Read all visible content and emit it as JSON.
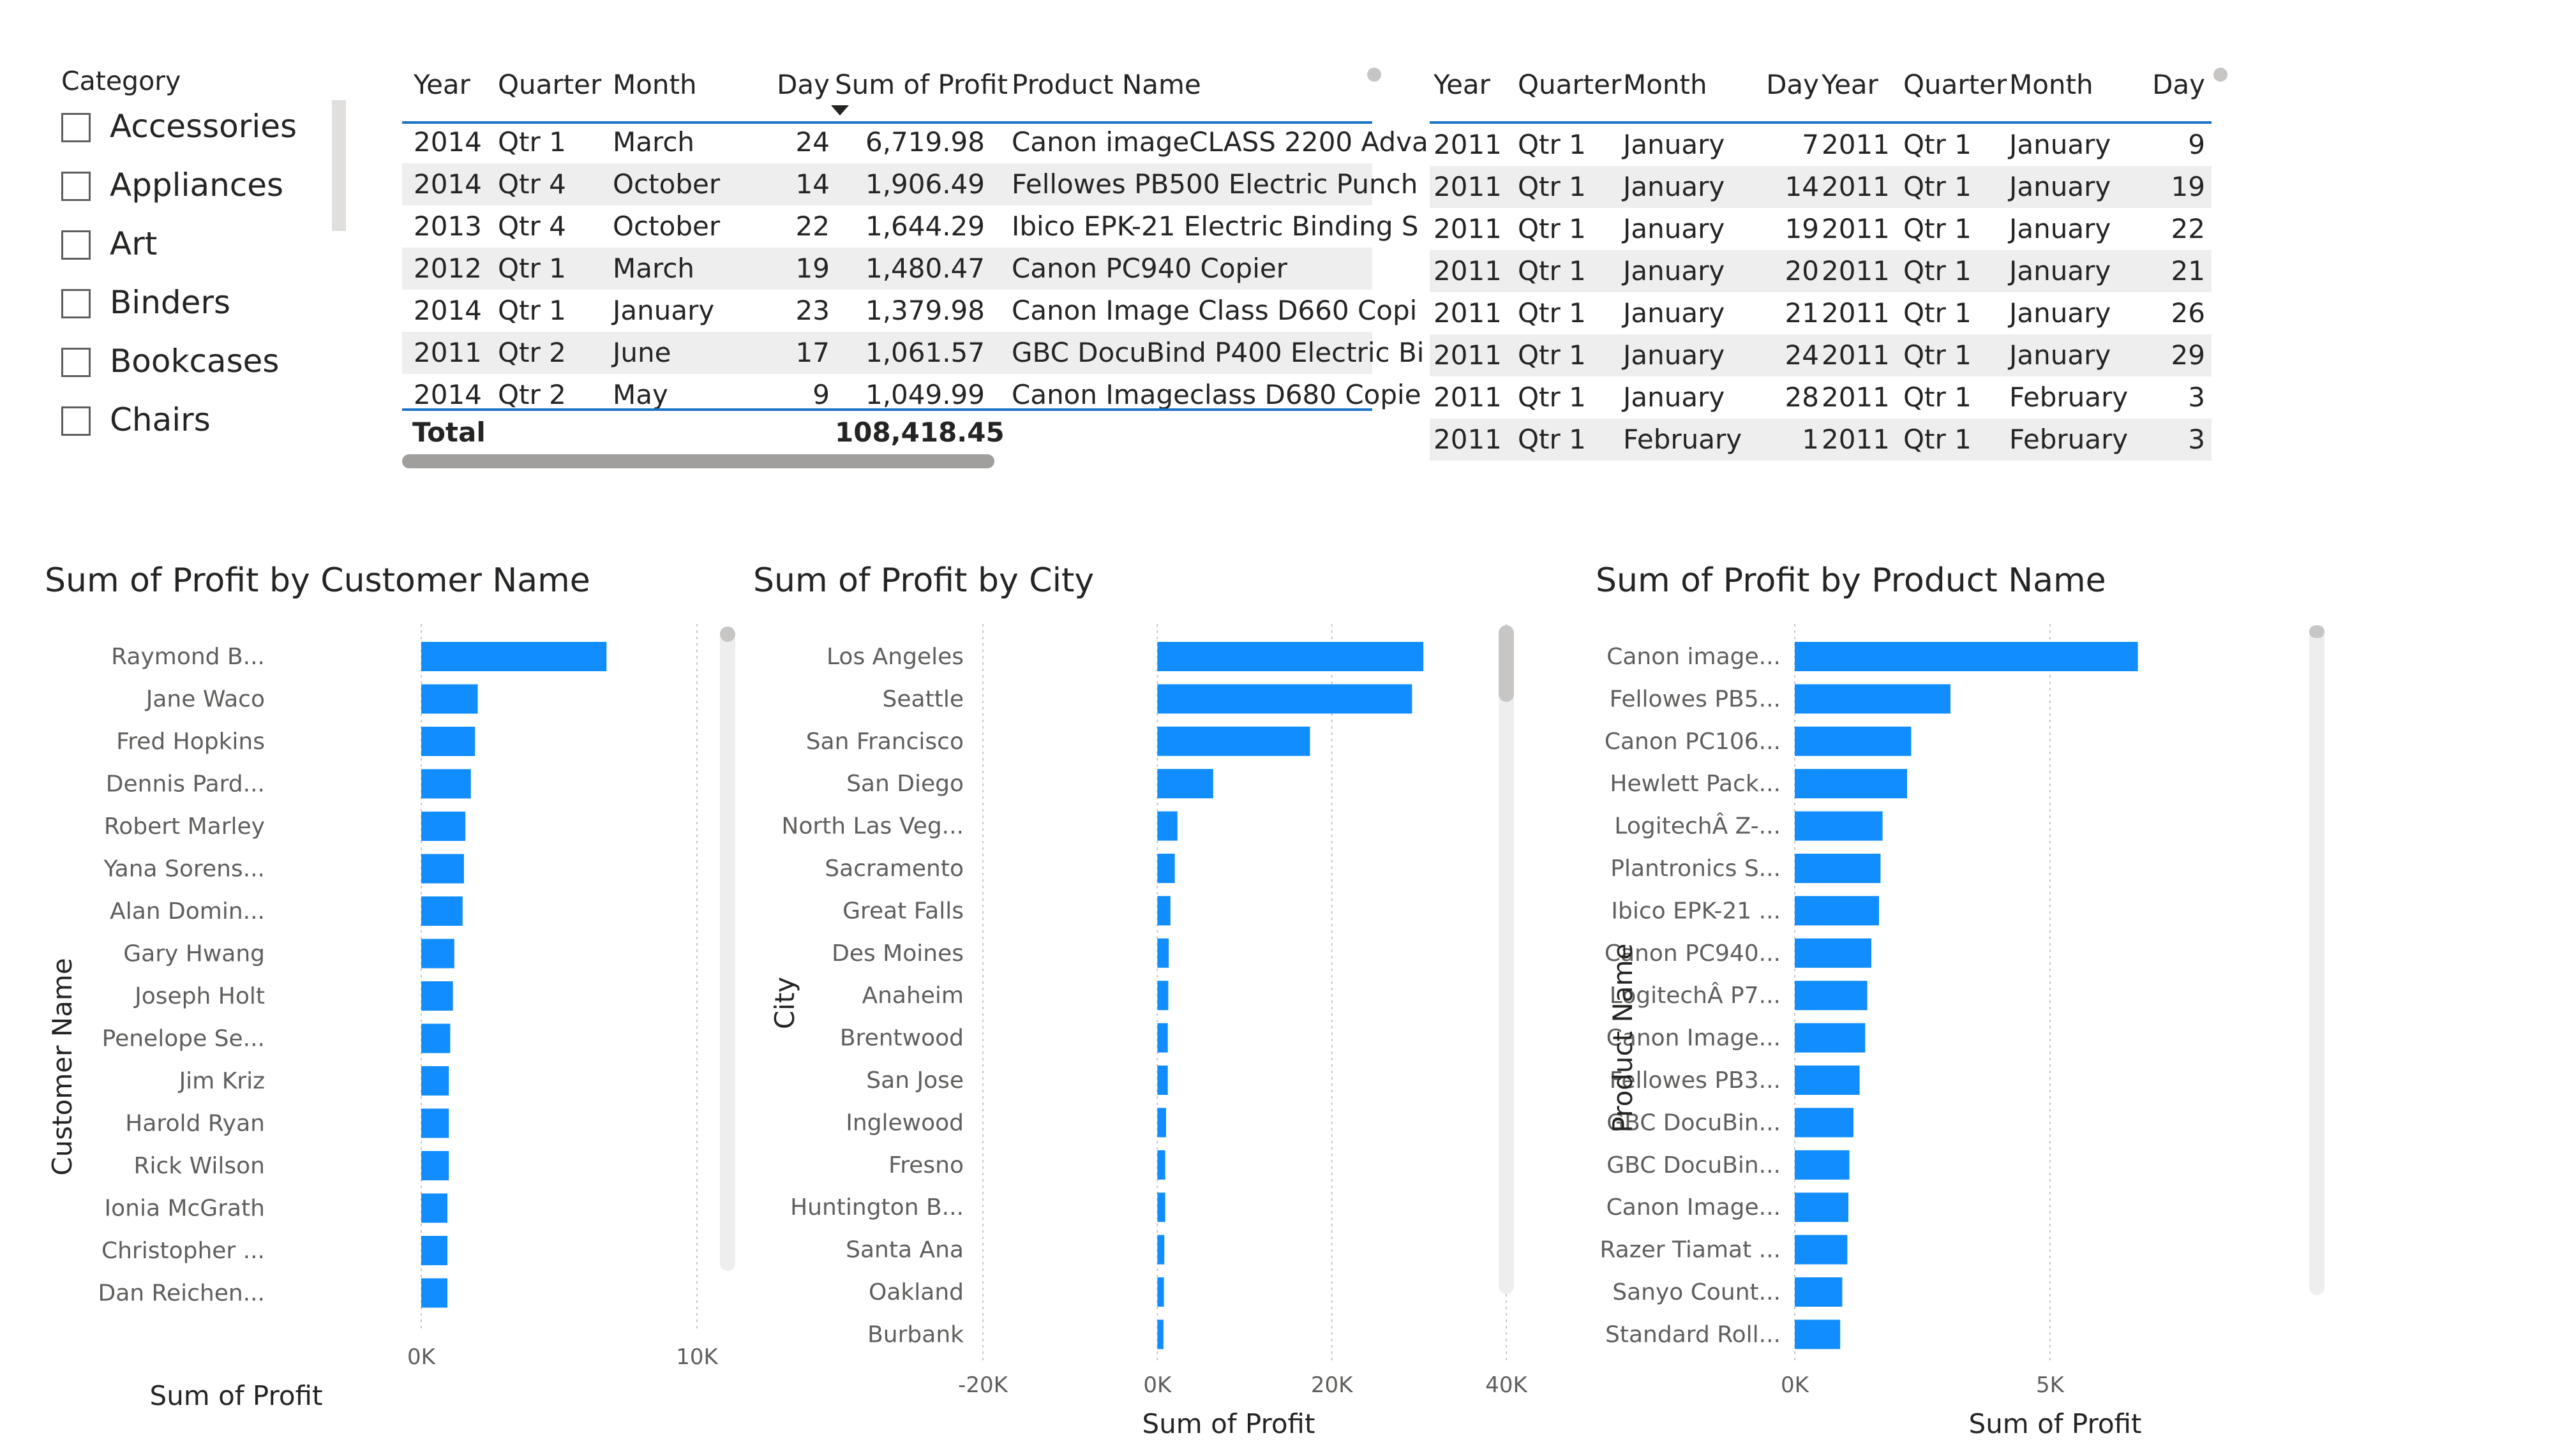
{
  "slicer": {
    "title": "Category",
    "options": [
      "Accessories",
      "Appliances",
      "Art",
      "Binders",
      "Bookcases",
      "Chairs"
    ]
  },
  "table1": {
    "headers": [
      "Year",
      "Quarter",
      "Month",
      "Day",
      "Sum of Profit",
      "Product Name"
    ],
    "rows": [
      [
        "2014",
        "Qtr 1",
        "March",
        "24",
        "6,719.98",
        "Canon imageCLASS 2200 Adva"
      ],
      [
        "2014",
        "Qtr 4",
        "October",
        "14",
        "1,906.49",
        "Fellowes PB500 Electric Punch"
      ],
      [
        "2013",
        "Qtr 4",
        "October",
        "22",
        "1,644.29",
        "Ibico EPK-21 Electric Binding S"
      ],
      [
        "2012",
        "Qtr 1",
        "March",
        "19",
        "1,480.47",
        "Canon PC940 Copier"
      ],
      [
        "2014",
        "Qtr 1",
        "January",
        "23",
        "1,379.98",
        "Canon Image Class D660 Copi"
      ],
      [
        "2011",
        "Qtr 2",
        "June",
        "17",
        "1,061.57",
        "GBC DocuBind P400 Electric Bi"
      ],
      [
        "2014",
        "Qtr 2",
        "May",
        "9",
        "1,049.99",
        "Canon Imageclass D680 Copie"
      ]
    ],
    "total_label": "Total",
    "total_value": "108,418.45"
  },
  "table2": {
    "headers": [
      "Year",
      "Quarter",
      "Month",
      "Day",
      "Year",
      "Quarter",
      "Month",
      "Day"
    ],
    "rows": [
      [
        "2011",
        "Qtr 1",
        "January",
        "7",
        "2011",
        "Qtr 1",
        "January",
        "9"
      ],
      [
        "2011",
        "Qtr 1",
        "January",
        "14",
        "2011",
        "Qtr 1",
        "January",
        "19"
      ],
      [
        "2011",
        "Qtr 1",
        "January",
        "19",
        "2011",
        "Qtr 1",
        "January",
        "22"
      ],
      [
        "2011",
        "Qtr 1",
        "January",
        "20",
        "2011",
        "Qtr 1",
        "January",
        "21"
      ],
      [
        "2011",
        "Qtr 1",
        "January",
        "21",
        "2011",
        "Qtr 1",
        "January",
        "26"
      ],
      [
        "2011",
        "Qtr 1",
        "January",
        "24",
        "2011",
        "Qtr 1",
        "January",
        "29"
      ],
      [
        "2011",
        "Qtr 1",
        "January",
        "28",
        "2011",
        "Qtr 1",
        "February",
        "3"
      ],
      [
        "2011",
        "Qtr 1",
        "February",
        "1",
        "2011",
        "Qtr 1",
        "February",
        "3"
      ]
    ]
  },
  "chart_data": [
    {
      "type": "bar",
      "orientation": "horizontal",
      "title": "Sum of Profit by Customer Name",
      "xlabel": "Sum of Profit",
      "ylabel": "Customer Name",
      "xlim": [
        0,
        10000
      ],
      "ticks": [
        0,
        10000
      ],
      "tick_labels": [
        "0K",
        "10K"
      ],
      "grid": true,
      "color": "#118DFF",
      "categories": [
        "Raymond B...",
        "Jane Waco",
        "Fred Hopkins",
        "Dennis Pard...",
        "Robert Marley",
        "Yana Sorens...",
        "Alan Domin...",
        "Gary Hwang",
        "Joseph Holt",
        "Penelope Se...",
        "Jim Kriz",
        "Harold Ryan",
        "Rick Wilson",
        "Ionia McGrath",
        "Christopher ...",
        "Dan Reichen..."
      ],
      "values": [
        6720,
        2050,
        1950,
        1800,
        1600,
        1550,
        1500,
        1200,
        1150,
        1050,
        1000,
        1000,
        1000,
        950,
        950,
        950
      ]
    },
    {
      "type": "bar",
      "orientation": "horizontal",
      "title": "Sum of Profit by City",
      "xlabel": "Sum of Profit",
      "ylabel": "City",
      "xlim": [
        -20000,
        40000
      ],
      "ticks": [
        -20000,
        0,
        20000,
        40000
      ],
      "tick_labels": [
        "-20K",
        "0K",
        "20K",
        "40K"
      ],
      "grid": true,
      "color": "#118DFF",
      "categories": [
        "Los Angeles",
        "Seattle",
        "San Francisco",
        "San Diego",
        "North Las Veg...",
        "Sacramento",
        "Great Falls",
        "Des Moines",
        "Anaheim",
        "Brentwood",
        "San Jose",
        "Inglewood",
        "Fresno",
        "Huntington B...",
        "Santa Ana",
        "Oakland",
        "Burbank"
      ],
      "values": [
        30500,
        29200,
        17500,
        6400,
        2300,
        2000,
        1500,
        1300,
        1250,
        1200,
        1200,
        1000,
        900,
        900,
        800,
        750,
        700
      ]
    },
    {
      "type": "bar",
      "orientation": "horizontal",
      "title": "Sum of Profit by Product Name",
      "xlabel": "Sum of Profit",
      "ylabel": "Product Name",
      "xlim": [
        0,
        10000
      ],
      "ticks": [
        0,
        5000
      ],
      "tick_labels": [
        "0K",
        "5K"
      ],
      "grid": true,
      "color": "#118DFF",
      "categories": [
        "Canon image...",
        "Fellowes PB5...",
        "Canon PC106...",
        "Hewlett Pack...",
        "LogitechÂ Z-...",
        "Plantronics S...",
        "Ibico EPK-21 ...",
        "Canon PC940...",
        "LogitechÂ P7...",
        "Canon Image...",
        "Fellowes PB3...",
        "GBC DocuBin...",
        "GBC DocuBin...",
        "Canon Image...",
        "Razer Tiamat ...",
        "Sanyo Count...",
        "Standard Roll..."
      ],
      "values": [
        6720,
        3050,
        2280,
        2200,
        1720,
        1680,
        1650,
        1500,
        1420,
        1380,
        1270,
        1150,
        1070,
        1050,
        1030,
        930,
        890
      ]
    }
  ]
}
